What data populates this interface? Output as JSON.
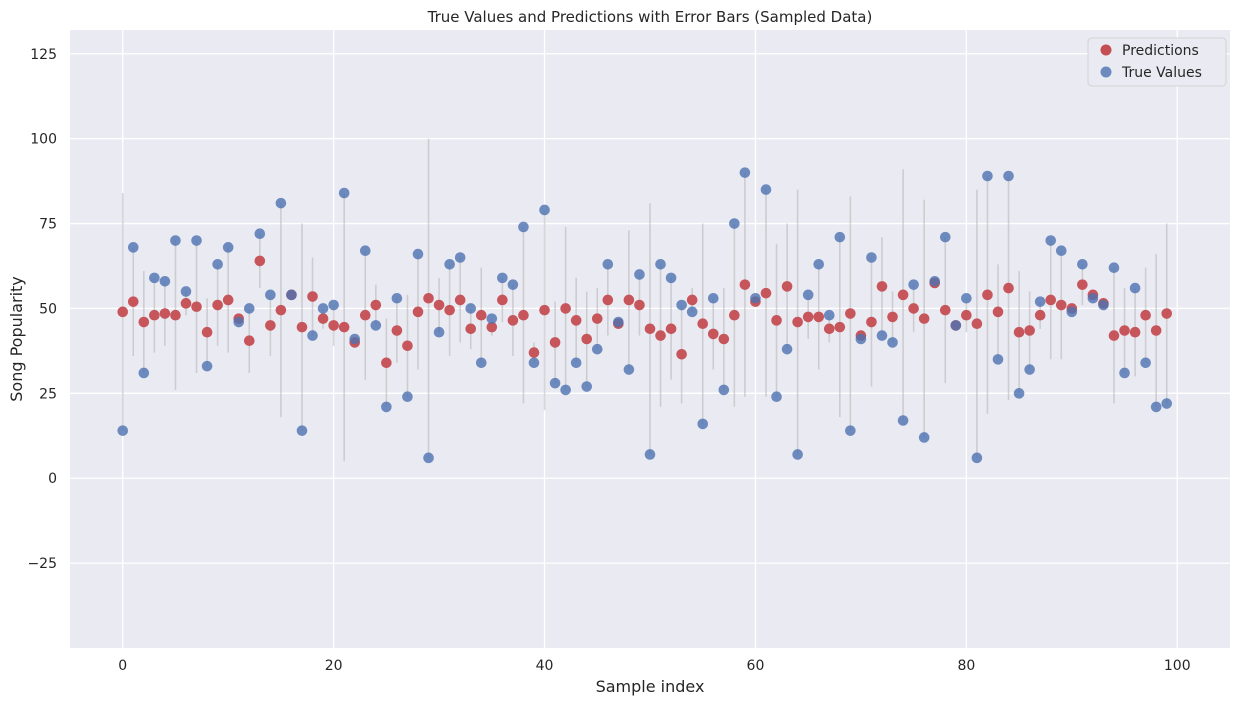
{
  "chart_data": {
    "type": "scatter",
    "title": "True Values and Predictions with Error Bars (Sampled Data)",
    "xlabel": "Sample index",
    "ylabel": "Song Popularity",
    "xlim": [
      -5,
      105
    ],
    "ylim": [
      -50,
      132
    ],
    "xticks": [
      "0",
      "20",
      "40",
      "60",
      "80",
      "100"
    ],
    "yticks": [
      "−25",
      "0",
      "25",
      "50",
      "75",
      "100",
      "125"
    ],
    "grid": true,
    "legend_position": "top-right",
    "error_bars": "vertical line from prediction to true value",
    "x": [
      0,
      1,
      2,
      3,
      4,
      5,
      6,
      7,
      8,
      9,
      10,
      11,
      12,
      13,
      14,
      15,
      16,
      17,
      18,
      19,
      20,
      21,
      22,
      23,
      24,
      25,
      26,
      27,
      28,
      29,
      30,
      31,
      32,
      33,
      34,
      35,
      36,
      37,
      38,
      39,
      40,
      41,
      42,
      43,
      44,
      45,
      46,
      47,
      48,
      49,
      50,
      51,
      52,
      53,
      54,
      55,
      56,
      57,
      58,
      59,
      60,
      61,
      62,
      63,
      64,
      65,
      66,
      67,
      68,
      69,
      70,
      71,
      72,
      73,
      74,
      75,
      76,
      77,
      78,
      79,
      80,
      81,
      82,
      83,
      84,
      85,
      86,
      87,
      88,
      89,
      90,
      91,
      92,
      93,
      94,
      95,
      96,
      97,
      98,
      99
    ],
    "series": [
      {
        "name": "Predictions",
        "color": "#c44e52",
        "values": [
          49,
          52,
          46,
          48,
          48.5,
          48,
          51.5,
          50.5,
          43,
          51,
          52.5,
          47,
          40.5,
          64,
          45,
          49.5,
          54,
          44.5,
          53.5,
          47,
          45,
          44.5,
          40,
          48,
          51,
          34,
          43.5,
          39,
          49,
          53,
          51,
          49.5,
          52.5,
          44,
          48,
          44.5,
          52.5,
          46.5,
          48,
          37,
          49.5,
          40,
          50,
          46.5,
          41,
          47,
          52.5,
          45.5,
          52.5,
          51,
          44,
          42,
          44,
          36.5,
          52.5,
          45.5,
          42.5,
          41,
          48,
          57,
          52,
          54.5,
          46.5,
          56.5,
          46,
          47.5,
          47.5,
          44,
          44.5,
          48.5,
          42,
          46,
          56.5,
          47.5,
          54,
          50,
          47,
          57.5,
          49.5,
          45,
          48,
          45.5,
          54,
          49,
          56,
          43,
          43.5,
          48,
          52.5,
          51,
          50,
          57,
          54,
          51.5,
          42,
          43.5,
          43,
          48,
          43.5,
          48.5
        ]
      },
      {
        "name": "True Values",
        "color": "#4c72b0",
        "values": [
          14,
          68,
          31,
          59,
          58,
          70,
          55,
          70,
          33,
          63,
          68,
          46,
          50,
          72,
          54,
          81,
          54,
          14,
          42,
          50,
          51,
          84,
          41,
          67,
          45,
          21,
          53,
          24,
          66,
          6,
          43,
          63,
          65,
          50,
          34,
          47,
          59,
          57,
          74,
          34,
          79,
          28,
          26,
          34,
          27,
          38,
          63,
          46,
          32,
          60,
          7,
          63,
          59,
          51,
          49,
          16,
          53,
          26,
          75,
          90,
          53,
          85,
          24,
          38,
          7,
          54,
          63,
          48,
          71,
          14,
          41,
          65,
          42,
          40,
          17,
          57,
          12,
          58,
          71,
          45,
          53,
          6,
          89,
          35,
          89,
          25,
          32,
          52,
          70,
          67,
          49,
          63,
          53,
          51,
          62,
          31,
          56,
          34,
          21,
          22
        ]
      }
    ]
  }
}
